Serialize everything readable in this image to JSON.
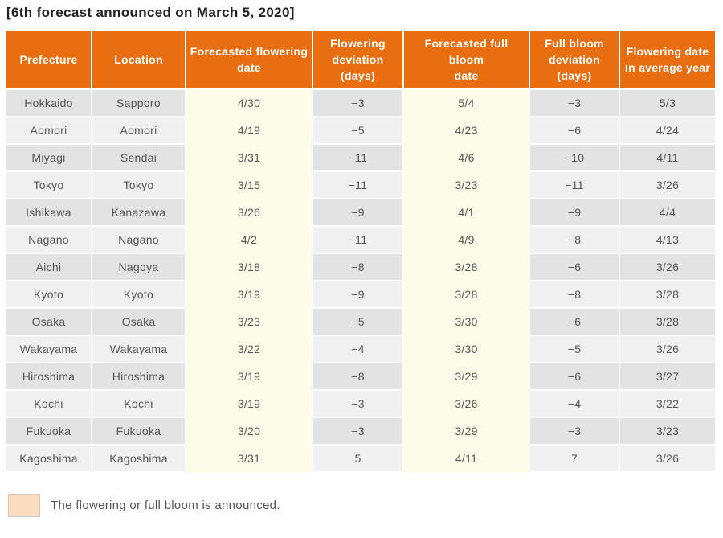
{
  "page": {
    "title": "[6th forecast announced on March 5, 2020]"
  },
  "colors": {
    "header_bg": "#E96E0F",
    "header_text": "#FFFFFF",
    "row_dark_bg": "#E3E3E3",
    "row_light_bg": "#F0F0F0",
    "forecast_column_bg": "#FCFCE9",
    "announced_swatch_bg": "#FADCBE",
    "cell_text": "#555555",
    "title_text": "#222222"
  },
  "table": {
    "columns": [
      {
        "key": "prefecture",
        "label": "Prefecture",
        "highlight": false
      },
      {
        "key": "location",
        "label": "Location",
        "highlight": false
      },
      {
        "key": "flowering_date",
        "label": "Forecasted flowering\ndate",
        "highlight": true
      },
      {
        "key": "flowering_dev",
        "label": "Flowering\ndeviation (days)",
        "highlight": false
      },
      {
        "key": "full_bloom_date",
        "label": "Forecasted full bloom\ndate",
        "highlight": true
      },
      {
        "key": "full_bloom_dev",
        "label": "Full bloom\ndeviation\n(days)",
        "highlight": false
      },
      {
        "key": "avg_year_date",
        "label": "Flowering date\nin average year",
        "highlight": false
      }
    ],
    "rows": [
      [
        "Hokkaido",
        "Sapporo",
        "4/30",
        "−3",
        "5/4",
        "−3",
        "5/3"
      ],
      [
        "Aomori",
        "Aomori",
        "4/19",
        "−5",
        "4/23",
        "−6",
        "4/24"
      ],
      [
        "Miyagi",
        "Sendai",
        "3/31",
        "−11",
        "4/6",
        "−10",
        "4/11"
      ],
      [
        "Tokyo",
        "Tokyo",
        "3/15",
        "−11",
        "3/23",
        "−11",
        "3/26"
      ],
      [
        "Ishikawa",
        "Kanazawa",
        "3/26",
        "−9",
        "4/1",
        "−9",
        "4/4"
      ],
      [
        "Nagano",
        "Nagano",
        "4/2",
        "−11",
        "4/9",
        "−8",
        "4/13"
      ],
      [
        "Aichi",
        "Nagoya",
        "3/18",
        "−8",
        "3/28",
        "−6",
        "3/26"
      ],
      [
        "Kyoto",
        "Kyoto",
        "3/19",
        "−9",
        "3/28",
        "−8",
        "3/28"
      ],
      [
        "Osaka",
        "Osaka",
        "3/23",
        "−5",
        "3/30",
        "−6",
        "3/28"
      ],
      [
        "Wakayama",
        "Wakayama",
        "3/22",
        "−4",
        "3/30",
        "−5",
        "3/26"
      ],
      [
        "Hiroshima",
        "Hiroshima",
        "3/19",
        "−8",
        "3/29",
        "−6",
        "3/27"
      ],
      [
        "Kochi",
        "Kochi",
        "3/19",
        "−3",
        "3/26",
        "−4",
        "3/22"
      ],
      [
        "Fukuoka",
        "Fukuoka",
        "3/20",
        "−3",
        "3/29",
        "−3",
        "3/23"
      ],
      [
        "Kagoshima",
        "Kagoshima",
        "3/31",
        "5",
        "4/11",
        "7",
        "3/26"
      ]
    ]
  },
  "legend": {
    "text": "The flowering or full bloom is announced."
  }
}
